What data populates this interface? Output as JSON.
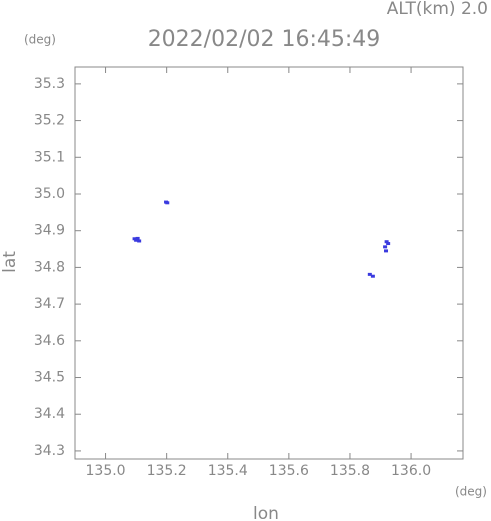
{
  "chart_data": {
    "type": "scatter",
    "title": "2022/02/02 16:45:49",
    "subtitle": "ALT(km) 2.0",
    "y_unit": "(deg)",
    "x_unit": "(deg)",
    "xlabel": "lon",
    "ylabel": "lat",
    "color": "#3a3adf",
    "x": [
      135.095,
      135.1,
      135.105,
      135.11,
      135.198,
      135.202,
      135.865,
      135.875,
      135.915,
      135.92,
      135.925,
      135.918
    ],
    "values": [
      34.878,
      34.874,
      34.879,
      34.872,
      34.978,
      34.976,
      34.781,
      34.776,
      34.856,
      34.87,
      34.865,
      34.845
    ],
    "xlim": [
      134.9,
      136.17
    ],
    "ylim": [
      34.278,
      35.346
    ],
    "xticks": [
      {
        "value": 135,
        "label": "135.0"
      },
      135.2,
      135.4,
      135.6,
      135.8,
      {
        "value": 136,
        "label": "136.0"
      }
    ],
    "yticks": [
      34.3,
      34.4,
      34.5,
      34.6,
      34.7,
      34.8,
      34.9,
      {
        "value": 35,
        "label": "35.0"
      },
      35.1,
      35.2,
      35.3
    ]
  }
}
